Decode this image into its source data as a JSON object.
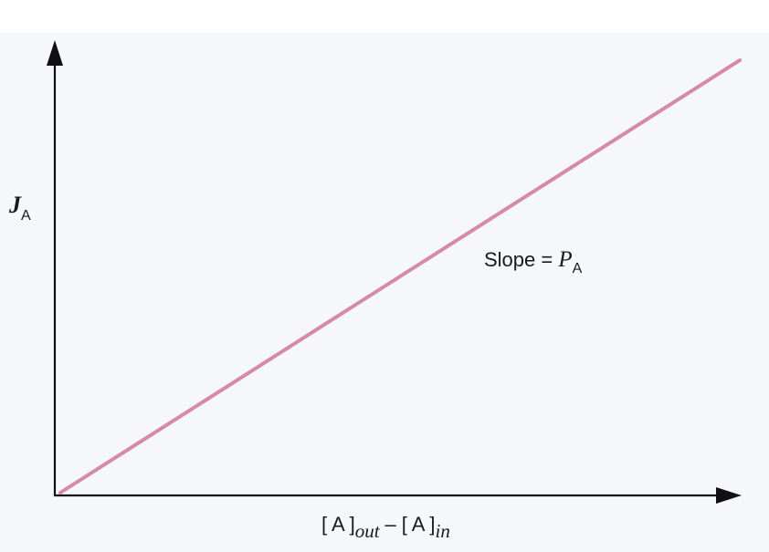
{
  "chart_data": {
    "type": "line",
    "title": "",
    "ylabel": {
      "main": "J",
      "sub": "A"
    },
    "xlabel": {
      "part1": "[ A ]",
      "sub1": "out",
      "minus": "–",
      "part2": "[ A ]",
      "sub2": "in"
    },
    "annotation": {
      "prefix": "Slope = ",
      "main": "P",
      "sub": "A"
    },
    "x": [
      0,
      1
    ],
    "series": [
      {
        "values": [
          0,
          1
        ]
      }
    ],
    "xlim": [
      0,
      1
    ],
    "ylim": [
      0,
      1
    ],
    "grid": false,
    "colors": {
      "line": "#d48aa8",
      "axis": "#111111",
      "panel": "#f5f7fb",
      "text": "#1a1a1a"
    }
  }
}
